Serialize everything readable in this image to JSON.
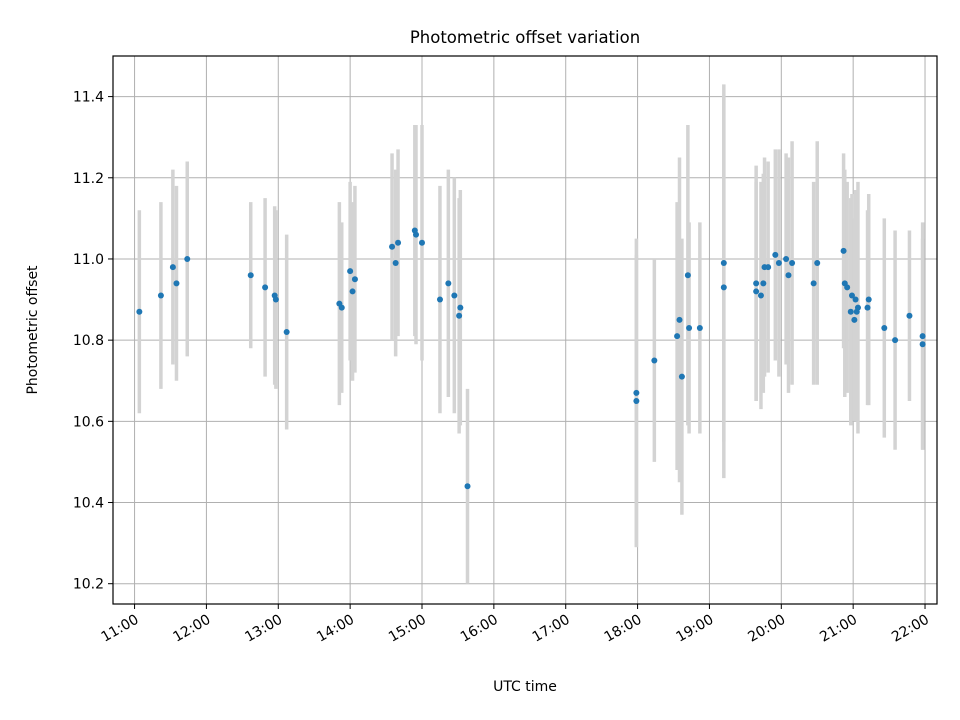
{
  "chart_data": {
    "type": "scatter",
    "title": "Photometric offset variation",
    "xlabel": "UTC time",
    "ylabel": "Photometric offset",
    "xlim": [
      "10:42",
      "22:10"
    ],
    "ylim": [
      10.15,
      11.5
    ],
    "xticks": [
      "11:00",
      "12:00",
      "13:00",
      "14:00",
      "15:00",
      "16:00",
      "17:00",
      "18:00",
      "19:00",
      "20:00",
      "21:00",
      "22:00"
    ],
    "yticks": [
      10.2,
      10.4,
      10.6,
      10.8,
      11.0,
      11.2,
      11.4
    ],
    "ytick_labels": [
      "10.2",
      "10.4",
      "10.6",
      "10.8",
      "11.0",
      "11.2",
      "11.4"
    ],
    "grid": true,
    "point_color": "#1f77b4",
    "errorbar_color": "#d3d3d3",
    "series": [
      {
        "x": [
          "11:04",
          "11:22",
          "11:32",
          "11:35",
          "11:44",
          "12:37",
          "12:49",
          "12:57",
          "12:58",
          "13:07",
          "13:51",
          "13:53",
          "14:00",
          "14:02",
          "14:04",
          "14:35",
          "14:38",
          "14:40",
          "14:54",
          "14:55",
          "15:00",
          "15:15",
          "15:22",
          "15:27",
          "15:31",
          "15:32",
          "15:38",
          "17:59",
          "17:59",
          "18:14",
          "18:33",
          "18:35",
          "18:37",
          "18:42",
          "18:43",
          "18:52",
          "19:12",
          "19:12",
          "19:39",
          "19:39",
          "19:43",
          "19:45",
          "19:46",
          "19:49",
          "19:55",
          "19:58",
          "20:04",
          "20:06",
          "20:09",
          "20:27",
          "20:30",
          "20:52",
          "20:53",
          "20:55",
          "20:58",
          "20:59",
          "21:01",
          "21:02",
          "21:03",
          "21:04",
          "21:12",
          "21:13",
          "21:26",
          "21:35",
          "21:47",
          "21:58",
          "21:58"
        ],
        "y": [
          10.87,
          10.91,
          10.98,
          10.94,
          11.0,
          10.96,
          10.93,
          10.91,
          10.9,
          10.82,
          10.89,
          10.88,
          10.97,
          10.92,
          10.95,
          11.03,
          10.99,
          11.04,
          11.07,
          11.06,
          11.04,
          10.9,
          10.94,
          10.91,
          10.86,
          10.88,
          10.44,
          10.67,
          10.65,
          10.75,
          10.81,
          10.85,
          10.71,
          10.96,
          10.83,
          10.83,
          10.99,
          10.93,
          10.92,
          10.94,
          10.91,
          10.94,
          10.98,
          10.98,
          11.01,
          10.99,
          11.0,
          10.96,
          10.99,
          10.94,
          10.99,
          11.02,
          10.94,
          10.93,
          10.87,
          10.91,
          10.85,
          10.9,
          10.87,
          10.88,
          10.88,
          10.9,
          10.83,
          10.8,
          10.86,
          10.81,
          10.79
        ],
        "yerr": [
          0.25,
          0.23,
          0.24,
          0.24,
          0.24,
          0.18,
          0.22,
          0.22,
          0.22,
          0.24,
          0.25,
          0.21,
          0.22,
          0.22,
          0.23,
          0.23,
          0.23,
          0.23,
          0.26,
          0.27,
          0.29,
          0.28,
          0.28,
          0.29,
          0.29,
          0.29,
          0.24,
          0.38,
          0.36,
          0.25,
          0.33,
          0.4,
          0.34,
          0.37,
          0.26,
          0.26,
          0.44,
          0.47,
          0.27,
          0.29,
          0.28,
          0.27,
          0.27,
          0.26,
          0.26,
          0.28,
          0.26,
          0.29,
          0.3,
          0.25,
          0.3,
          0.24,
          0.28,
          0.26,
          0.28,
          0.25,
          0.25,
          0.27,
          0.27,
          0.31,
          0.24,
          0.26,
          0.27,
          0.27,
          0.21,
          0.28,
          0.26
        ]
      }
    ]
  }
}
